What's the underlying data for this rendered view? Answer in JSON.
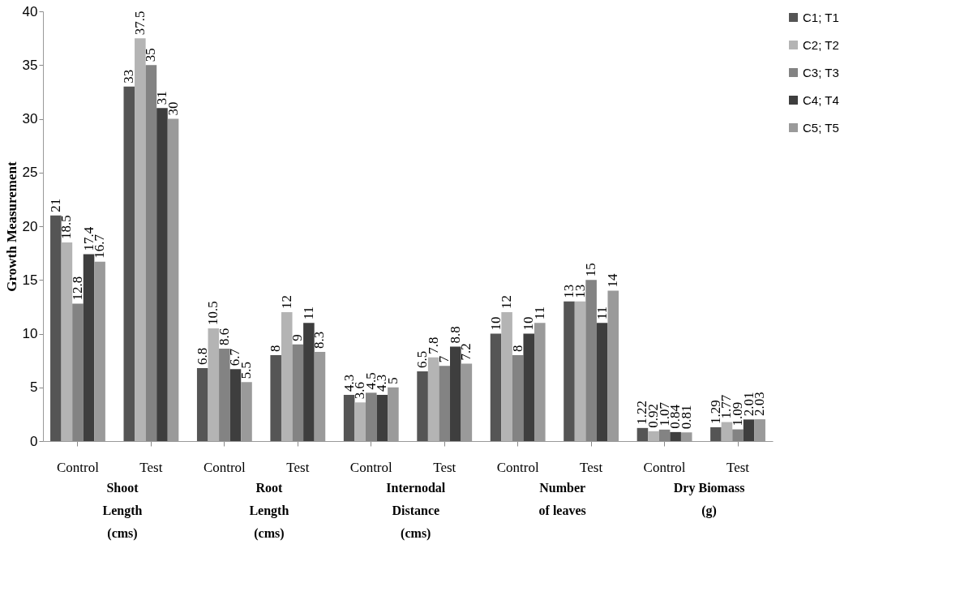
{
  "chart_data": {
    "type": "bar",
    "ylabel": "Growth Measurement",
    "categories": [
      "Control",
      "Test",
      "Control",
      "Test",
      "Control",
      "Test",
      "Control",
      "Test",
      "Control",
      "Test"
    ],
    "series": [
      {
        "name": "C1; T1",
        "color": "#555555",
        "values": [
          21,
          33,
          6.8,
          8,
          4.3,
          6.5,
          10,
          13,
          1.22,
          1.29
        ]
      },
      {
        "name": "C2; T2",
        "color": "#b4b4b4",
        "values": [
          18.5,
          37.5,
          10.5,
          12,
          3.6,
          7.8,
          12,
          13,
          0.92,
          1.77
        ]
      },
      {
        "name": "C3; T3",
        "color": "#838383",
        "values": [
          12.8,
          35,
          8.6,
          9,
          4.5,
          7,
          8,
          15,
          1.07,
          1.09
        ]
      },
      {
        "name": "C4; T4",
        "color": "#3e3e3e",
        "values": [
          17.4,
          31,
          6.7,
          11,
          4.3,
          8.8,
          10,
          11,
          0.84,
          2.01
        ]
      },
      {
        "name": "C5; T5",
        "color": "#9a9a9a",
        "values": [
          16.7,
          30,
          5.5,
          8.3,
          5,
          7.2,
          11,
          14,
          0.81,
          2.03
        ]
      }
    ],
    "ylim": [
      0,
      40
    ],
    "yticks": [
      0,
      5,
      10,
      15,
      20,
      25,
      30,
      35,
      40
    ],
    "data_labels": true,
    "legend": "top right",
    "grid": false,
    "annotations": [
      "Shoot\nLength\n(cms)",
      "Root\nLength\n(cms)",
      "Internodal\nDistance\n(cms)",
      "Number\nof leaves",
      "Dry Biomass\n\n(g)"
    ]
  }
}
